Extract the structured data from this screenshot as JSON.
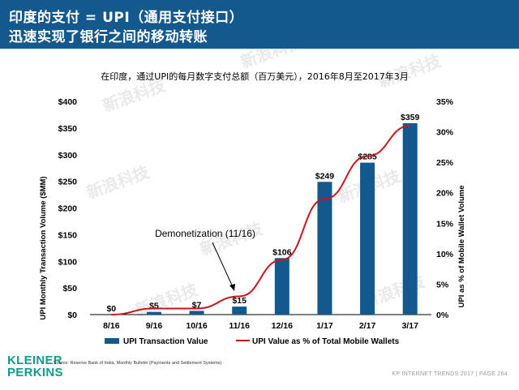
{
  "header": {
    "title_line1": "印度的支付 = UPI（通用支付接口）",
    "title_line2": "迅速实现了银行之间的移动转账"
  },
  "chart_data": {
    "type": "bar",
    "title": "在印度，通过UPI的每月数字支付总额（百万美元），2016年8月至2017年3月",
    "categories": [
      "8/16",
      "9/16",
      "10/16",
      "11/16",
      "12/16",
      "1/17",
      "2/17",
      "3/17"
    ],
    "series": [
      {
        "name": "UPI Transaction Value",
        "type": "bar",
        "axis": "left",
        "values": [
          0,
          5,
          7,
          15,
          106,
          249,
          285,
          359
        ],
        "labels": [
          "$0",
          "$5",
          "$7",
          "$15",
          "$106",
          "$249",
          "$285",
          "$359"
        ],
        "color": "#13598e"
      },
      {
        "name": "UPI Value as % of Total Mobile Wallets",
        "type": "line",
        "axis": "right",
        "values": [
          0,
          1,
          1,
          3,
          9,
          19,
          26,
          31
        ],
        "color": "#c8161d"
      }
    ],
    "ylabel": "UPI Monthly Transaction Volume ($MM)",
    "ylim": [
      0,
      400
    ],
    "yticks": [
      "$0",
      "$50",
      "$100",
      "$150",
      "$200",
      "$250",
      "$300",
      "$350",
      "$400"
    ],
    "y2label": "UPI as % of Mobile Wallet Volume",
    "y2lim": [
      0,
      35
    ],
    "y2ticks": [
      "0%",
      "5%",
      "10%",
      "15%",
      "20%",
      "25%",
      "30%",
      "35%"
    ],
    "annotation": {
      "text": "Demonetization (11/16)",
      "category": "11/16"
    },
    "legend": "bottom",
    "grid": false
  },
  "source": "Source: Reserve Bank of India, Monthly Bulletin (Payments and Settlement Systems)",
  "brand": {
    "line1": "KLEINER",
    "line2": "PERKINS"
  },
  "footer": "KP INTERNET TRENDS 2017  |  PAGE 264",
  "watermark": "新浪科技"
}
